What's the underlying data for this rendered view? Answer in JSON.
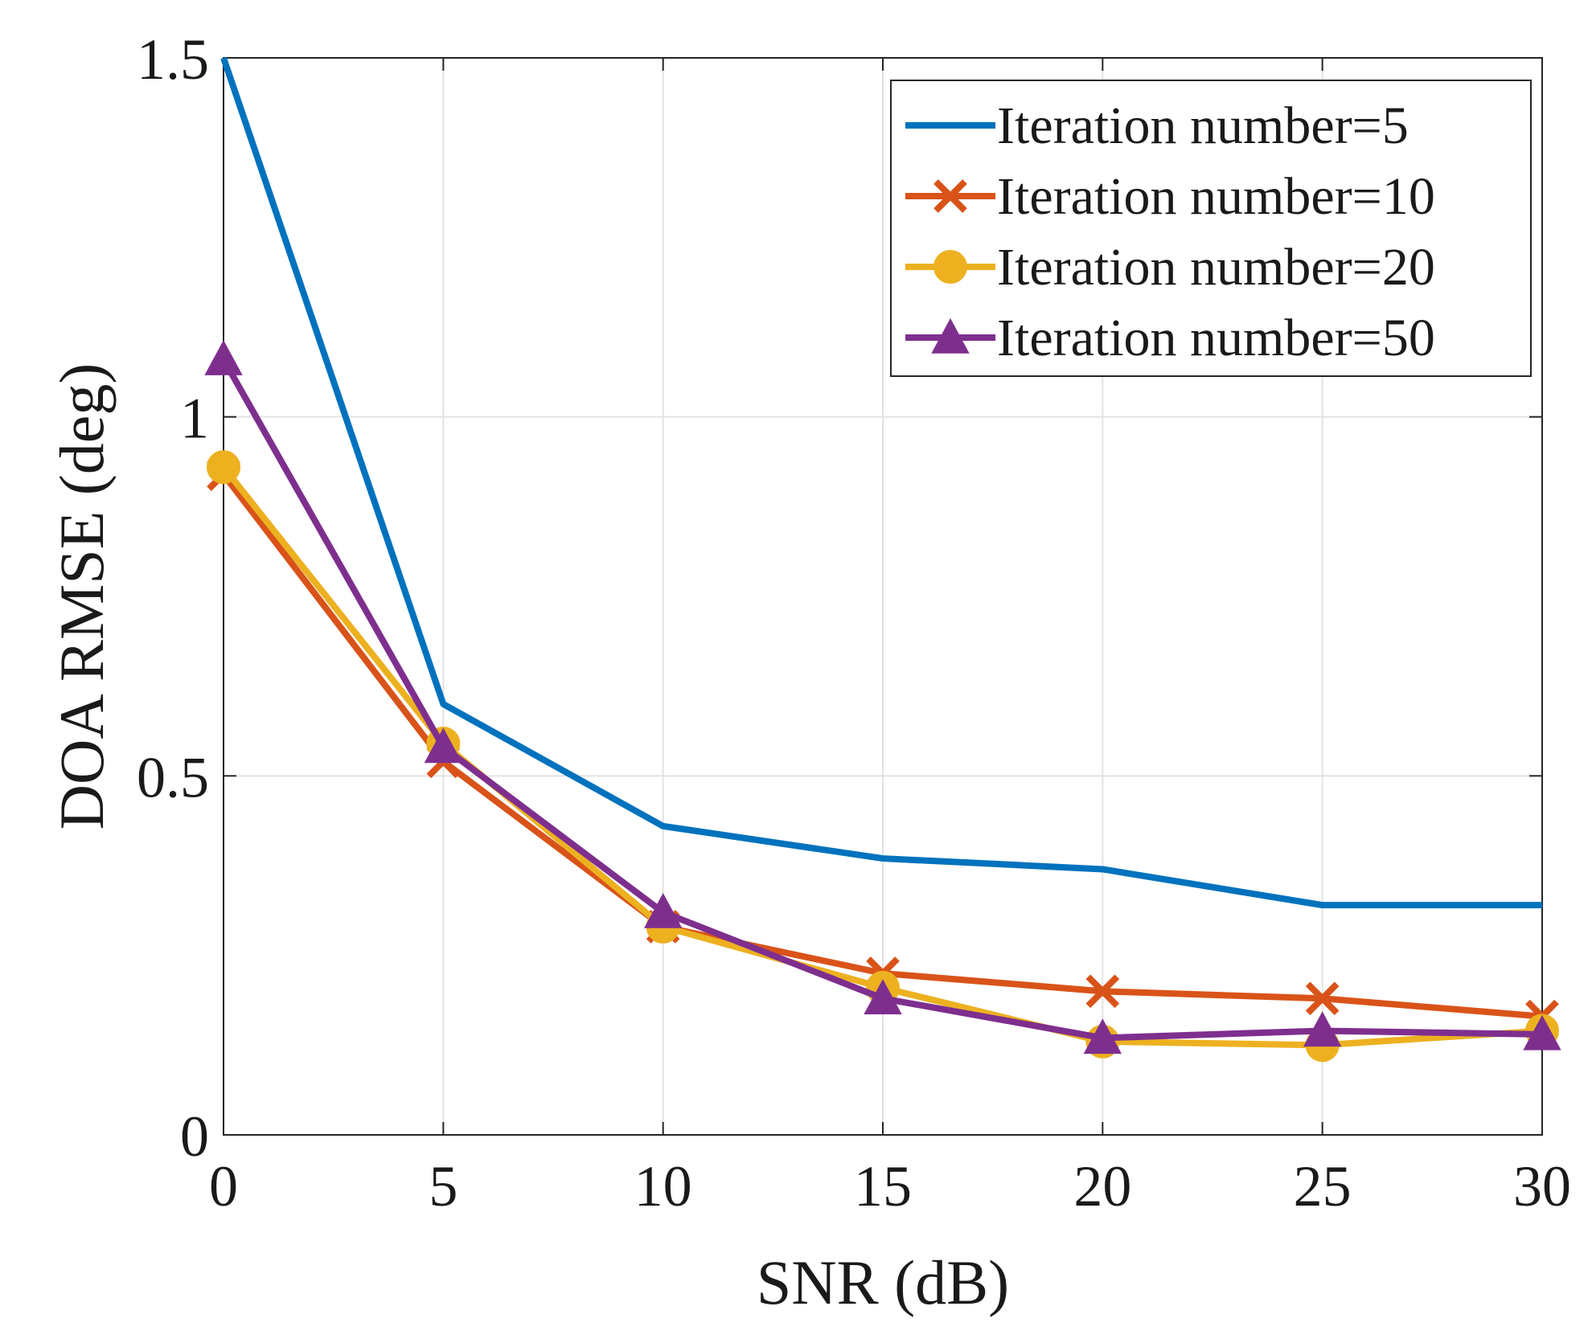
{
  "chart_data": {
    "type": "line",
    "title": "",
    "xlabel": "SNR (dB)",
    "ylabel": "DOA RMSE (deg)",
    "xlim": [
      0,
      30
    ],
    "ylim": [
      0,
      1.5
    ],
    "xticks": [
      0,
      5,
      10,
      15,
      20,
      25,
      30
    ],
    "yticks": [
      0,
      0.5,
      1,
      1.5
    ],
    "xtick_labels": [
      "0",
      "5",
      "10",
      "15",
      "20",
      "25",
      "30"
    ],
    "ytick_labels": [
      "0",
      "0.5",
      "1",
      "1.5"
    ],
    "grid": true,
    "legend_position": "top-right",
    "x": [
      0,
      5,
      10,
      15,
      20,
      25,
      30
    ],
    "series": [
      {
        "name": "Iteration number=5",
        "color": "#0072BD",
        "marker": "none",
        "values": [
          1.5,
          0.6,
          0.43,
          0.385,
          0.37,
          0.32,
          0.32
        ]
      },
      {
        "name": "Iteration number=10",
        "color": "#D95319",
        "marker": "x",
        "values": [
          0.92,
          0.52,
          0.29,
          0.225,
          0.2,
          0.19,
          0.165
        ]
      },
      {
        "name": "Iteration number=20",
        "color": "#EDB120",
        "marker": "circle",
        "values": [
          0.93,
          0.545,
          0.29,
          0.205,
          0.13,
          0.125,
          0.145
        ]
      },
      {
        "name": "Iteration number=50",
        "color": "#7E2F8E",
        "marker": "triangle",
        "values": [
          1.08,
          0.54,
          0.31,
          0.19,
          0.135,
          0.145,
          0.14
        ]
      }
    ]
  }
}
